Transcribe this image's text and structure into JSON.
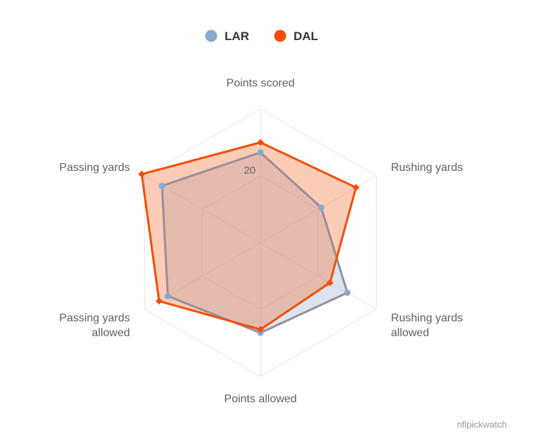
{
  "chart_data": {
    "type": "radar",
    "axes": [
      "Points scored",
      "Rushing yards",
      "Rushing yards allowed",
      "Points allowed",
      "Passing yards allowed",
      "Passing yards"
    ],
    "axis_label_lines": [
      [
        "Points scored"
      ],
      [
        "Rushing yards"
      ],
      [
        "Rushing yards",
        "allowed"
      ],
      [
        "Points allowed"
      ],
      [
        "Passing yards",
        "allowed"
      ],
      [
        "Passing yards"
      ]
    ],
    "ylim": [
      0,
      40
    ],
    "ticks": [
      20
    ],
    "tick_labels": [
      "20"
    ],
    "grid": true,
    "legend_position": "top-center",
    "series": [
      {
        "name": "LAR",
        "color": "#86aad0",
        "marker": "circle",
        "values": [
          27,
          21,
          30,
          27,
          32,
          34
        ]
      },
      {
        "name": "DAL",
        "color": "#f24e08",
        "marker": "diamond",
        "values": [
          30,
          33,
          24,
          26,
          35,
          41
        ]
      }
    ]
  },
  "credit": "nflpickwatch"
}
